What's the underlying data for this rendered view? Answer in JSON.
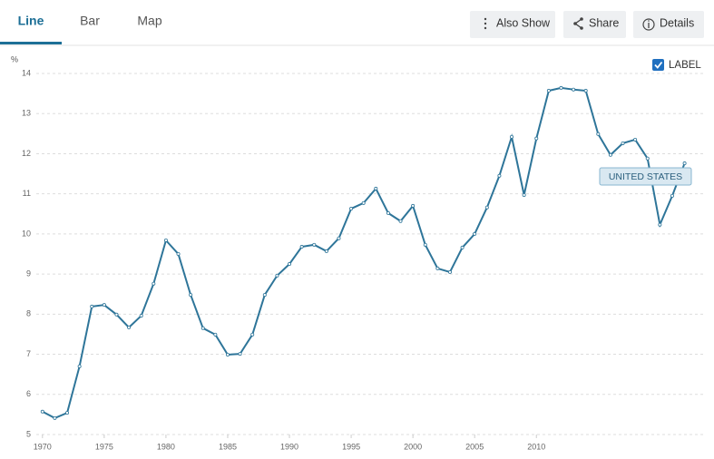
{
  "ui": {
    "tabs": [
      "Line",
      "Bar",
      "Map"
    ],
    "active_tab": 0,
    "buttons": [
      "Also Show",
      "Share",
      "Details"
    ],
    "label_toggle": "LABEL"
  },
  "chart_data": {
    "type": "line",
    "ylabel": "%",
    "x": [
      1970,
      1971,
      1972,
      1973,
      1974,
      1975,
      1976,
      1977,
      1978,
      1979,
      1980,
      1981,
      1982,
      1983,
      1984,
      1985,
      1986,
      1987,
      1988,
      1989,
      1990,
      1991,
      1992,
      1993,
      1994,
      1995,
      1996,
      1997,
      1998,
      1999,
      2000,
      2001,
      2002,
      2003,
      2004,
      2005,
      2006,
      2007,
      2008,
      2009,
      2010,
      2011,
      2012,
      2013,
      2014,
      2015,
      2016,
      2017,
      2018,
      2019,
      2020,
      2021,
      2022
    ],
    "series": [
      {
        "name": "UNITED STATES",
        "color": "#2e7599",
        "values": [
          5.57,
          5.41,
          5.54,
          6.7,
          8.19,
          8.23,
          7.99,
          7.67,
          7.96,
          8.76,
          9.84,
          9.5,
          8.48,
          7.65,
          7.49,
          6.99,
          7.01,
          7.49,
          8.48,
          8.96,
          9.25,
          9.68,
          9.73,
          9.57,
          9.89,
          10.63,
          10.77,
          11.13,
          10.52,
          10.32,
          10.7,
          9.73,
          9.14,
          9.05,
          9.66,
          10.0,
          10.66,
          11.45,
          12.42,
          10.97,
          12.38,
          13.57,
          13.64,
          13.6,
          13.57,
          12.49,
          11.97,
          12.26,
          12.35,
          11.88,
          10.23,
          10.95,
          11.76
        ]
      }
    ],
    "xlim": [
      1969.5,
      2023.5
    ],
    "xticks": [
      1970,
      1975,
      1980,
      1985,
      1990,
      1995,
      2000,
      2005,
      2010
    ],
    "ylim": [
      5,
      14
    ],
    "yticks": [
      5,
      6,
      7,
      8,
      9,
      10,
      11,
      12,
      13,
      14
    ],
    "grid": true
  }
}
